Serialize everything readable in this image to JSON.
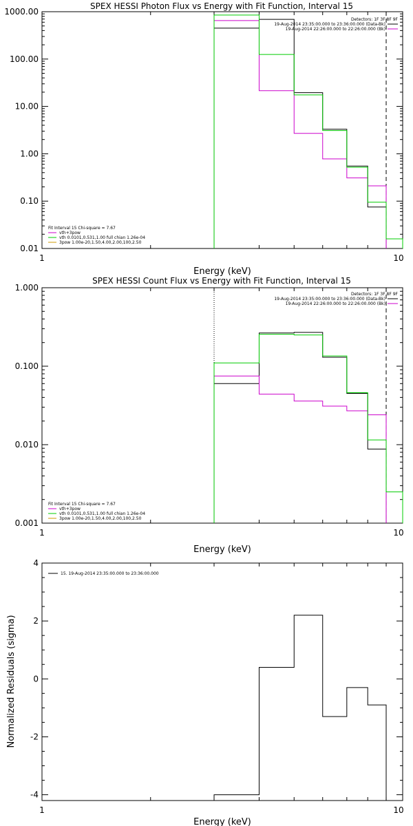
{
  "colors": {
    "black": "#000000",
    "magenta": "#cc00cc",
    "green": "#00cc00",
    "orange": "#cc9900"
  },
  "chart_data": [
    {
      "type": "line",
      "title": "SPEX HESSI Photon Flux vs Energy with Fit Function, Interval 15",
      "xlabel": "Energy (keV)",
      "ylabel": "",
      "xscale": "log",
      "yscale": "log",
      "xlim": [
        1,
        10
      ],
      "ylim": [
        0.01,
        1000
      ],
      "xticks": [
        "1",
        "10"
      ],
      "yticks": [
        "1000.00",
        "100.00",
        "10.00",
        "1.00",
        "0.10",
        "0.01"
      ],
      "edges": [
        3,
        4,
        5,
        6,
        7,
        8,
        9,
        10
      ],
      "dotted_line_x": 3,
      "dashed_line_x": 9,
      "series": [
        {
          "name": "",
          "color": "#000000",
          "values": [
            450,
            690,
            19.5,
            3.3,
            0.55,
            0.075
          ]
        },
        {
          "name": "vth+3pow",
          "color": "#cc00cc",
          "values": [
            650,
            21.5,
            2.7,
            0.78,
            0.31,
            0.21
          ]
        },
        {
          "name": "vth 0.0101,0.531,1.00  full chian 1.26e-04",
          "color": "#00cc00",
          "values": [
            850,
            125,
            17.5,
            3.1,
            0.52,
            0.095,
            0.016
          ]
        },
        {
          "name": "3pow 1.00e-20,1.50,4.00,2.00,100,2.50",
          "color": "#cc9900",
          "values": []
        }
      ],
      "legend_top": [
        "Detectors: 1F 3F 8F 9F",
        "19-Aug-2014 23:35:00.000 to 23:36:00.000 (Data-Bk)",
        "19-Aug-2014 22:26:00.000 to 22:26:00.000 (Bk)"
      ],
      "legend_bottom_header": "Fit Interval 15   Chi-square = 7.67"
    },
    {
      "type": "line",
      "title": "SPEX HESSI Count Flux vs Energy with Fit Function, Interval 15",
      "xlabel": "Energy (keV)",
      "ylabel": "",
      "xscale": "log",
      "yscale": "log",
      "xlim": [
        1,
        10
      ],
      "ylim": [
        0.001,
        1
      ],
      "xticks": [
        "1",
        "10"
      ],
      "yticks": [
        "1.000",
        "0.100",
        "0.010",
        "0.001"
      ],
      "edges": [
        3,
        4,
        5,
        6,
        7,
        8,
        9,
        10
      ],
      "dotted_line_x": 3,
      "dashed_line_x": 9,
      "series": [
        {
          "name": "",
          "color": "#000000",
          "values": [
            0.06,
            0.265,
            0.27,
            0.13,
            0.045,
            0.0088
          ]
        },
        {
          "name": "vth+3pow",
          "color": "#cc00cc",
          "values": [
            0.075,
            0.044,
            0.036,
            0.031,
            0.027,
            0.024
          ]
        },
        {
          "name": "vth 0.0101,0.531,1.00  full chian 1.26e-04",
          "color": "#00cc00",
          "values": [
            0.11,
            0.255,
            0.25,
            0.135,
            0.046,
            0.0115,
            0.0025
          ]
        },
        {
          "name": "3pow 1.00e-20,1.50,4.00,2.00,100,2.50",
          "color": "#cc9900",
          "values": []
        }
      ],
      "legend_top": [
        "Detectors: 1F 3F 8F 9F",
        "19-Aug-2014 23:35:00.000 to 23:36:00.000 (Data-Bk)",
        "19-Aug-2014 22:26:00.000 to 22:26:00.000 (Bk)"
      ],
      "legend_bottom_header": "Fit Interval 15   Chi-square = 7.67"
    },
    {
      "type": "line",
      "title": "",
      "xlabel": "Energy (keV)",
      "ylabel": "Normalized Residuals (sigma)",
      "xscale": "log",
      "yscale": "linear",
      "xlim": [
        1,
        10
      ],
      "ylim": [
        -4.2,
        4
      ],
      "xticks": [
        "1",
        "10"
      ],
      "yticks": [
        "4",
        "2",
        "0",
        "-2",
        "-4"
      ],
      "edges": [
        3,
        4,
        5,
        6,
        7,
        8,
        9
      ],
      "series": [
        {
          "name": "15. 19-Aug-2014 23:35:00.000 to 23:36:00.000",
          "color": "#000000",
          "values": [
            -4.0,
            0.4,
            2.2,
            -1.3,
            -0.3,
            -0.9
          ]
        }
      ]
    }
  ]
}
